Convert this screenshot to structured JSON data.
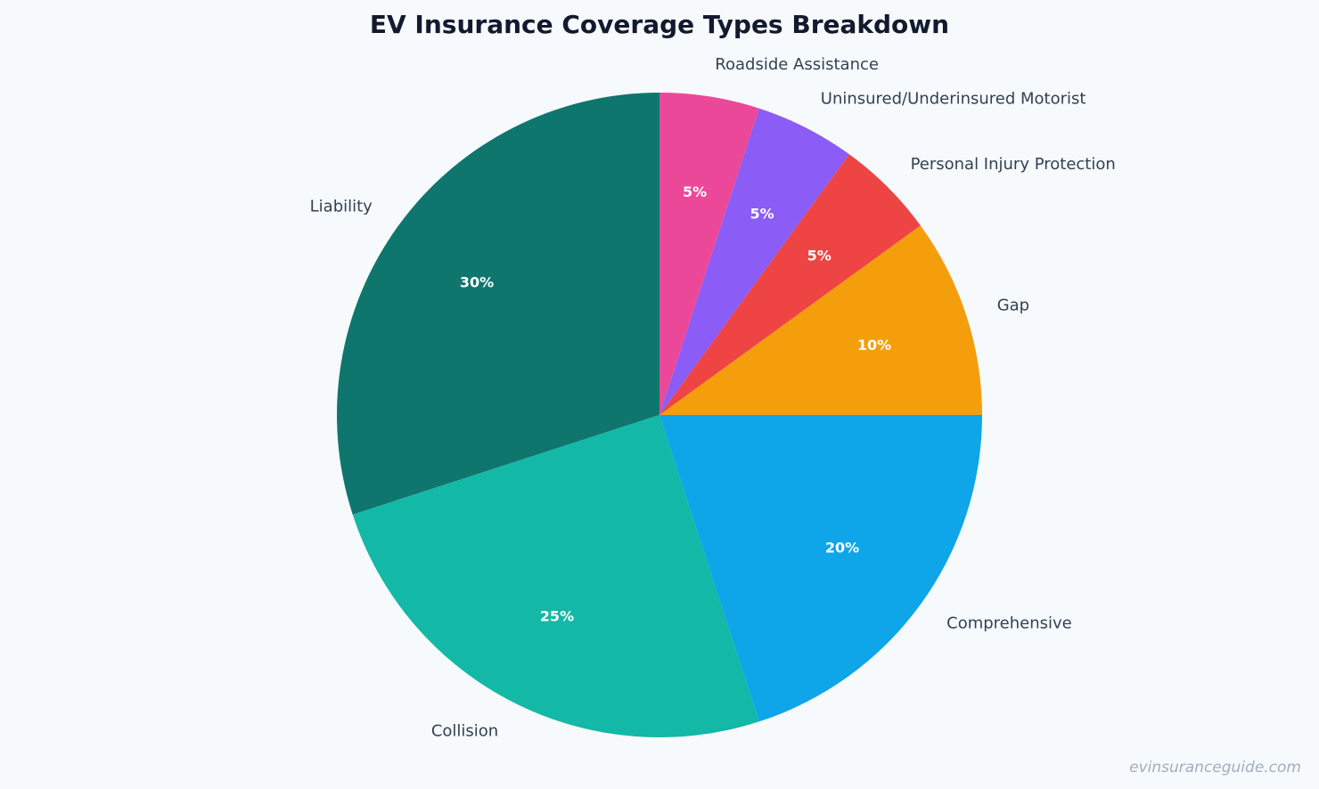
{
  "chart_data": {
    "type": "pie",
    "title": "EV Insurance Coverage Types Breakdown",
    "start_angle_deg": 90,
    "direction": "counterclockwise",
    "slices": [
      {
        "label": "Liability",
        "value": 30,
        "pct_label": "30%",
        "color": "#0f766e"
      },
      {
        "label": "Collision",
        "value": 25,
        "pct_label": "25%",
        "color": "#14b8a6"
      },
      {
        "label": "Comprehensive",
        "value": 20,
        "pct_label": "20%",
        "color": "#0ea5e9"
      },
      {
        "label": "Gap",
        "value": 10,
        "pct_label": "10%",
        "color": "#f59e0b"
      },
      {
        "label": "Personal Injury Protection",
        "value": 5,
        "pct_label": "5%",
        "color": "#ef4444"
      },
      {
        "label": "Uninsured/Underinsured Motorist",
        "value": 5,
        "pct_label": "5%",
        "color": "#8b5cf6"
      },
      {
        "label": "Roadside Assistance",
        "value": 5,
        "pct_label": "5%",
        "color": "#ec4899"
      }
    ]
  },
  "watermark": "evinsuranceguide.com"
}
